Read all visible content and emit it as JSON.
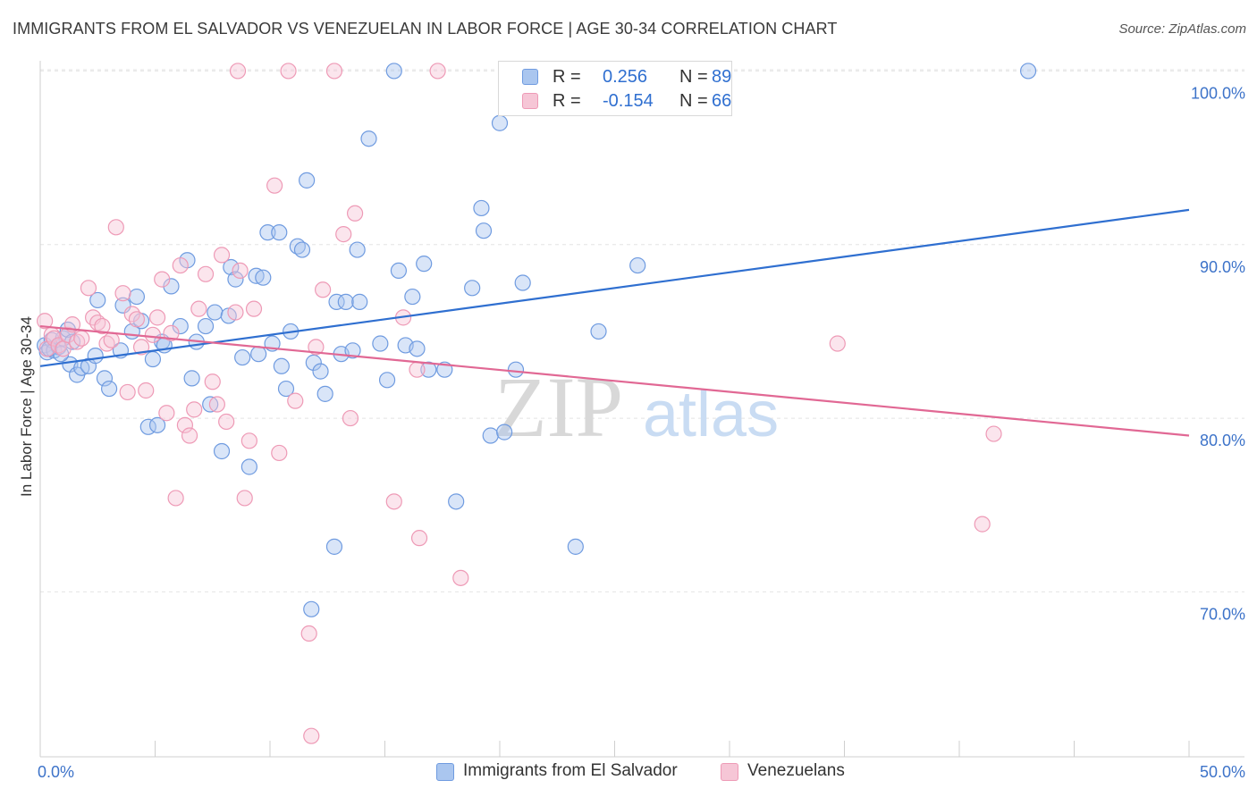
{
  "title": "IMMIGRANTS FROM EL SALVADOR VS VENEZUELAN IN LABOR FORCE | AGE 30-34 CORRELATION CHART",
  "source": "Source: ZipAtlas.com",
  "watermark": {
    "zip": "ZIP",
    "atlas": "atlas"
  },
  "legend": {
    "r_label": "R =",
    "n_label": "N =",
    "series": [
      {
        "name": "Immigrants from El Salvador",
        "r": "0.256",
        "n": "89"
      },
      {
        "name": "Venezuelans",
        "r": "-0.154",
        "n": "66"
      }
    ]
  },
  "colors": {
    "blue_stroke": "#6f9be0",
    "blue_fill": "#aac6ef",
    "blue_line": "#2f6fd0",
    "pink_stroke": "#ee9ab6",
    "pink_fill": "#f6c6d6",
    "pink_line": "#e16894",
    "axis_text": "#3d73c9"
  },
  "chart_data": {
    "type": "scatter",
    "title": "IMMIGRANTS FROM EL SALVADOR VS VENEZUELAN IN LABOR FORCE | AGE 30-34 CORRELATION CHART",
    "xlabel": "",
    "ylabel": "In Labor Force | Age 30-34",
    "xlim": [
      0,
      50
    ],
    "ylim": [
      60.5,
      101
    ],
    "x_tick_labels": [
      "0.0%",
      "50.0%"
    ],
    "y_ticks": [
      70,
      80,
      90,
      100
    ],
    "y_tick_labels": [
      "70.0%",
      "80.0%",
      "90.0%",
      "100.0%"
    ],
    "series": [
      {
        "name": "Immigrants from El Salvador",
        "color": "#6f9be0",
        "trend": {
          "x": [
            0,
            50
          ],
          "y": [
            83.0,
            92.0
          ]
        },
        "points": [
          [
            0.2,
            84.2
          ],
          [
            0.3,
            83.8
          ],
          [
            0.5,
            84.5
          ],
          [
            0.6,
            83.9
          ],
          [
            0.8,
            84.1
          ],
          [
            1.0,
            84.6
          ],
          [
            1.2,
            85.1
          ],
          [
            1.3,
            83.1
          ],
          [
            1.6,
            82.5
          ],
          [
            1.8,
            82.9
          ],
          [
            2.1,
            83.0
          ],
          [
            2.5,
            86.8
          ],
          [
            2.8,
            82.3
          ],
          [
            3.0,
            81.7
          ],
          [
            3.6,
            86.5
          ],
          [
            4.0,
            85.0
          ],
          [
            4.2,
            87.0
          ],
          [
            4.4,
            85.6
          ],
          [
            4.7,
            79.5
          ],
          [
            4.9,
            83.4
          ],
          [
            5.1,
            79.6
          ],
          [
            5.3,
            84.4
          ],
          [
            5.4,
            84.2
          ],
          [
            5.7,
            87.6
          ],
          [
            6.1,
            85.3
          ],
          [
            6.4,
            89.1
          ],
          [
            6.6,
            82.3
          ],
          [
            6.8,
            84.4
          ],
          [
            7.2,
            85.3
          ],
          [
            7.4,
            80.8
          ],
          [
            7.6,
            86.1
          ],
          [
            7.9,
            78.1
          ],
          [
            8.2,
            85.9
          ],
          [
            8.3,
            88.7
          ],
          [
            8.5,
            88.0
          ],
          [
            8.8,
            83.5
          ],
          [
            9.1,
            77.2
          ],
          [
            9.4,
            88.2
          ],
          [
            9.5,
            83.7
          ],
          [
            9.7,
            88.1
          ],
          [
            9.9,
            90.7
          ],
          [
            10.1,
            84.3
          ],
          [
            10.4,
            90.7
          ],
          [
            10.5,
            83.0
          ],
          [
            10.7,
            81.7
          ],
          [
            10.9,
            85.0
          ],
          [
            11.2,
            89.9
          ],
          [
            11.4,
            89.7
          ],
          [
            11.6,
            93.7
          ],
          [
            11.8,
            69.0
          ],
          [
            11.9,
            83.2
          ],
          [
            12.2,
            82.7
          ],
          [
            12.4,
            81.4
          ],
          [
            12.8,
            72.6
          ],
          [
            12.9,
            86.7
          ],
          [
            13.1,
            83.7
          ],
          [
            13.3,
            86.7
          ],
          [
            13.6,
            83.9
          ],
          [
            13.8,
            89.7
          ],
          [
            13.9,
            86.7
          ],
          [
            14.3,
            96.1
          ],
          [
            14.8,
            84.3
          ],
          [
            15.1,
            82.2
          ],
          [
            15.4,
            100.0
          ],
          [
            15.6,
            88.5
          ],
          [
            15.9,
            84.2
          ],
          [
            16.2,
            87.0
          ],
          [
            16.4,
            84.0
          ],
          [
            16.7,
            88.9
          ],
          [
            16.9,
            82.8
          ],
          [
            17.6,
            82.8
          ],
          [
            18.1,
            75.2
          ],
          [
            18.8,
            87.5
          ],
          [
            19.2,
            92.1
          ],
          [
            19.3,
            90.8
          ],
          [
            19.6,
            79.0
          ],
          [
            20.0,
            97.0
          ],
          [
            20.2,
            79.2
          ],
          [
            20.7,
            82.8
          ],
          [
            21.0,
            87.8
          ],
          [
            23.3,
            72.6
          ],
          [
            24.3,
            85.0
          ],
          [
            26.0,
            88.8
          ],
          [
            43.0,
            100.0
          ],
          [
            0.4,
            84.0
          ],
          [
            0.9,
            83.7
          ],
          [
            1.4,
            84.4
          ],
          [
            2.4,
            83.6
          ],
          [
            3.5,
            83.9
          ]
        ]
      },
      {
        "name": "Venezuelans",
        "color": "#ee9ab6",
        "trend": {
          "x": [
            0,
            50
          ],
          "y": [
            85.3,
            79.0
          ]
        },
        "points": [
          [
            0.2,
            85.6
          ],
          [
            0.3,
            84.0
          ],
          [
            0.5,
            84.8
          ],
          [
            0.6,
            84.6
          ],
          [
            0.8,
            84.2
          ],
          [
            1.0,
            84.0
          ],
          [
            1.2,
            84.8
          ],
          [
            1.4,
            85.4
          ],
          [
            1.6,
            84.4
          ],
          [
            1.8,
            84.6
          ],
          [
            2.1,
            87.5
          ],
          [
            2.3,
            85.8
          ],
          [
            2.5,
            85.5
          ],
          [
            2.7,
            85.3
          ],
          [
            2.9,
            84.3
          ],
          [
            3.1,
            84.5
          ],
          [
            3.3,
            91.0
          ],
          [
            3.6,
            87.2
          ],
          [
            3.8,
            81.5
          ],
          [
            4.0,
            86.0
          ],
          [
            4.2,
            85.7
          ],
          [
            4.4,
            84.1
          ],
          [
            4.6,
            81.6
          ],
          [
            4.9,
            84.8
          ],
          [
            5.1,
            85.8
          ],
          [
            5.3,
            88.0
          ],
          [
            5.5,
            80.3
          ],
          [
            5.7,
            84.9
          ],
          [
            5.9,
            75.4
          ],
          [
            6.1,
            88.8
          ],
          [
            6.3,
            79.6
          ],
          [
            6.5,
            79.0
          ],
          [
            6.7,
            80.5
          ],
          [
            6.9,
            86.3
          ],
          [
            7.2,
            88.3
          ],
          [
            7.5,
            82.1
          ],
          [
            7.7,
            80.8
          ],
          [
            7.9,
            89.4
          ],
          [
            8.1,
            79.8
          ],
          [
            8.5,
            86.1
          ],
          [
            8.7,
            88.5
          ],
          [
            8.9,
            75.4
          ],
          [
            9.1,
            78.7
          ],
          [
            9.3,
            86.3
          ],
          [
            10.2,
            93.4
          ],
          [
            10.4,
            78.0
          ],
          [
            11.1,
            81.0
          ],
          [
            11.7,
            67.6
          ],
          [
            12.0,
            84.1
          ],
          [
            12.3,
            87.4
          ],
          [
            12.8,
            100.0
          ],
          [
            13.2,
            90.6
          ],
          [
            13.5,
            80.0
          ],
          [
            13.7,
            91.8
          ],
          [
            15.4,
            75.2
          ],
          [
            15.8,
            85.8
          ],
          [
            16.4,
            82.8
          ],
          [
            16.5,
            73.1
          ],
          [
            17.3,
            100.0
          ],
          [
            18.3,
            70.8
          ],
          [
            34.7,
            84.3
          ],
          [
            41.0,
            73.9
          ],
          [
            41.5,
            79.1
          ],
          [
            8.6,
            100.0
          ],
          [
            10.8,
            100.0
          ],
          [
            11.8,
            61.7
          ]
        ]
      }
    ]
  }
}
